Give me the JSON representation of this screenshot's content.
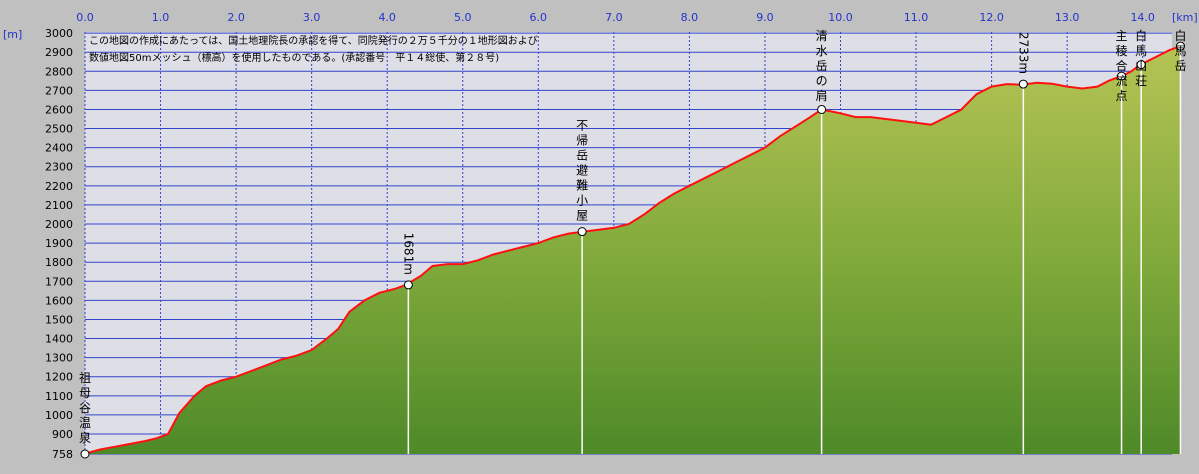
{
  "chart_data": {
    "type": "area",
    "x_unit": "[km]",
    "y_unit": "[m]",
    "xlim": [
      0,
      14.5
    ],
    "ylim": [
      758,
      3000
    ],
    "x_ticks": [
      "0.0",
      "1.0",
      "2.0",
      "3.0",
      "4.0",
      "5.0",
      "6.0",
      "7.0",
      "8.0",
      "9.0",
      "10.0",
      "11.0",
      "12.0",
      "13.0",
      "14.0"
    ],
    "y_ticks": [
      "3000",
      "2900",
      "2800",
      "2700",
      "2600",
      "2500",
      "2400",
      "2300",
      "2200",
      "2100",
      "2000",
      "1900",
      "1800",
      "1700",
      "1600",
      "1500",
      "1400",
      "1300",
      "1200",
      "1100",
      "1000",
      "900",
      "758"
    ],
    "grid": true,
    "notes": [
      "この地図の作成にあたっては、国土地理院長の承認を得て、同院発行の２万５千分の１地形図および",
      "数値地図50mメッシュ（標高）を使用したものである。(承認番号　平１４総使、第２８号)"
    ],
    "profile": {
      "x": [
        0.0,
        0.2,
        0.4,
        0.6,
        0.8,
        0.95,
        1.1,
        1.25,
        1.45,
        1.6,
        1.8,
        2.0,
        2.2,
        2.4,
        2.6,
        2.8,
        3.0,
        3.2,
        3.35,
        3.5,
        3.7,
        3.9,
        4.1,
        4.25,
        4.45,
        4.6,
        4.8,
        5.0,
        5.2,
        5.4,
        5.6,
        5.8,
        6.0,
        6.2,
        6.4,
        6.6,
        6.8,
        7.0,
        7.2,
        7.4,
        7.6,
        7.8,
        8.0,
        8.2,
        8.4,
        8.6,
        8.8,
        9.0,
        9.2,
        9.4,
        9.6,
        9.75,
        10.0,
        10.2,
        10.4,
        10.6,
        10.8,
        11.0,
        11.2,
        11.4,
        11.6,
        11.8,
        12.0,
        12.2,
        12.4,
        12.6,
        12.8,
        13.0,
        13.2,
        13.4,
        13.55,
        13.65,
        13.75,
        13.85,
        13.95,
        14.05,
        14.2,
        14.35,
        14.5
      ],
      "y": [
        760,
        790,
        810,
        830,
        850,
        870,
        900,
        1010,
        1100,
        1150,
        1180,
        1200,
        1230,
        1260,
        1290,
        1310,
        1340,
        1400,
        1450,
        1540,
        1600,
        1640,
        1660,
        1681,
        1730,
        1780,
        1790,
        1790,
        1810,
        1840,
        1860,
        1880,
        1900,
        1930,
        1950,
        1960,
        1970,
        1980,
        2000,
        2050,
        2110,
        2160,
        2200,
        2240,
        2280,
        2320,
        2360,
        2400,
        2460,
        2510,
        2560,
        2600,
        2580,
        2560,
        2560,
        2550,
        2540,
        2530,
        2520,
        2560,
        2600,
        2680,
        2720,
        2733,
        2730,
        2740,
        2735,
        2720,
        2710,
        2720,
        2750,
        2765,
        2780,
        2800,
        2830,
        2850,
        2880,
        2910,
        2932
      ]
    },
    "markers": [
      {
        "label": "祖母谷温泉",
        "x": 0.0,
        "y": 758
      },
      {
        "label": "1681m",
        "x": 4.28,
        "y": 1681
      },
      {
        "label": "不帰岳避難小屋",
        "x": 6.58,
        "y": 1960
      },
      {
        "label": "清水岳の肩",
        "x": 9.75,
        "y": 2600
      },
      {
        "label": "2733m",
        "x": 12.42,
        "y": 2733
      },
      {
        "label": "主稜合流点",
        "x": 13.72,
        "y": 2775
      },
      {
        "label": "白馬山荘",
        "x": 13.98,
        "y": 2835
      },
      {
        "label": "白馬岳",
        "x": 14.5,
        "y": 2932
      }
    ]
  }
}
